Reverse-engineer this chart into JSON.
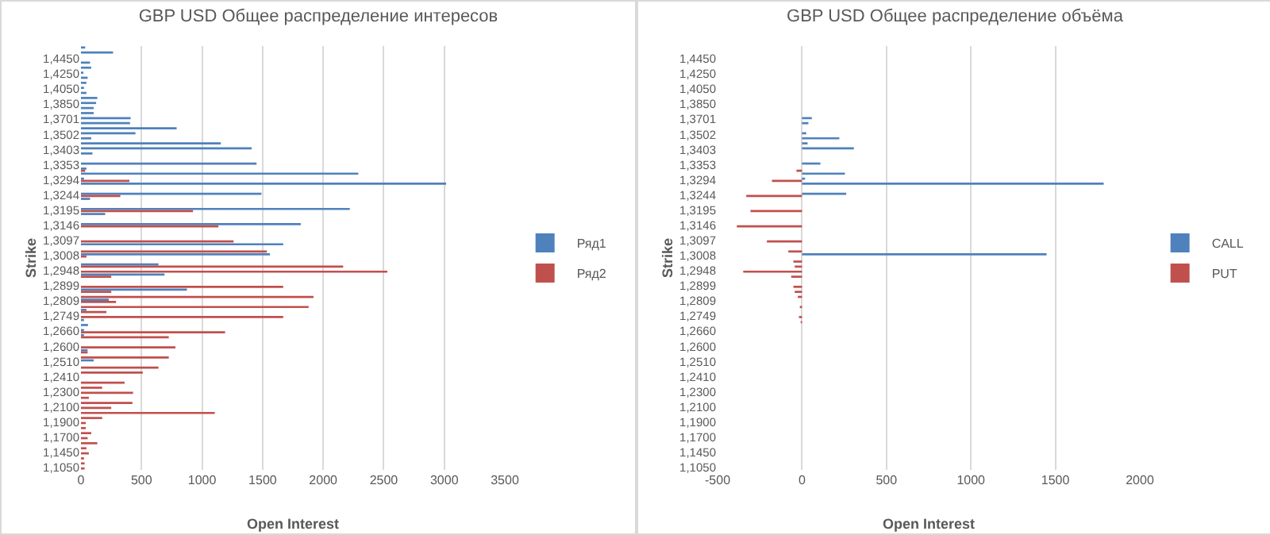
{
  "chart_data": [
    {
      "type": "bar",
      "orientation": "horizontal",
      "title": "GBP USD Общее распределение интересов",
      "xlabel": "Open Interest",
      "ylabel": "Strike",
      "categories": [
        null,
        null,
        "1,4450",
        null,
        null,
        "1,4250",
        null,
        null,
        "1,4050",
        null,
        null,
        "1,3850",
        null,
        null,
        "1,3701",
        null,
        null,
        "1,3502",
        null,
        null,
        "1,3403",
        null,
        null,
        "1,3353",
        null,
        null,
        "1,3294",
        null,
        null,
        "1,3244",
        null,
        null,
        "1,3195",
        null,
        null,
        "1,3146",
        null,
        null,
        "1,3097",
        null,
        null,
        "1,3008",
        null,
        null,
        "1,2948",
        null,
        null,
        "1,2899",
        null,
        null,
        "1,2809",
        null,
        null,
        "1,2749",
        null,
        null,
        "1,2660",
        null,
        null,
        "1,2600",
        null,
        null,
        "1,2510",
        null,
        null,
        "1,2410",
        null,
        null,
        "1,2300",
        null,
        null,
        "1,2100",
        null,
        null,
        "1,1900",
        null,
        null,
        "1,1700",
        null,
        null,
        "1,1450",
        null,
        null,
        "1,1050"
      ],
      "series": [
        {
          "name": "Ряд1",
          "color": "#4f81bd",
          "values": [
            35,
            265,
            null,
            75,
            85,
            20,
            55,
            45,
            25,
            45,
            135,
            125,
            105,
            105,
            410,
            405,
            790,
            450,
            85,
            1155,
            1410,
            95,
            null,
            1450,
            45,
            2290,
            25,
            3015,
            null,
            1490,
            75,
            null,
            2220,
            200,
            null,
            1815,
            null,
            null,
            null,
            1670,
            null,
            1560,
            null,
            640,
            null,
            690,
            null,
            null,
            875,
            null,
            230,
            null,
            45,
            null,
            25,
            58,
            25,
            25,
            null,
            null,
            55,
            null,
            105,
            null,
            null,
            null,
            null,
            null,
            null,
            null,
            null,
            null,
            null,
            null,
            null,
            null,
            null,
            null,
            null,
            null,
            null,
            null,
            null,
            null
          ]
        },
        {
          "name": "Ряд2",
          "color": "#c0504d",
          "values": [
            null,
            null,
            null,
            null,
            null,
            null,
            null,
            null,
            null,
            null,
            null,
            null,
            null,
            null,
            null,
            null,
            null,
            null,
            null,
            null,
            null,
            null,
            null,
            null,
            35,
            null,
            400,
            null,
            null,
            325,
            null,
            null,
            925,
            null,
            null,
            1135,
            null,
            null,
            1260,
            null,
            1535,
            45,
            null,
            2165,
            2530,
            250,
            null,
            1670,
            250,
            1920,
            290,
            1880,
            210,
            1670,
            null,
            null,
            1190,
            725,
            null,
            780,
            55,
            725,
            null,
            640,
            510,
            null,
            360,
            175,
            430,
            65,
            425,
            250,
            1105,
            175,
            40,
            40,
            85,
            55,
            135,
            45,
            65,
            25,
            30,
            30
          ]
        }
      ],
      "xlim": [
        0,
        3500
      ],
      "xticks": [
        0,
        500,
        1000,
        1500,
        2000,
        2500,
        3000,
        3500
      ],
      "grid": "x",
      "legend": "right"
    },
    {
      "type": "bar",
      "orientation": "horizontal",
      "title": "GBP USD Общее распределение объёма",
      "xlabel": "Open Interest",
      "ylabel": "Strike",
      "categories": [
        null,
        null,
        "1,4450",
        null,
        null,
        "1,4250",
        null,
        null,
        "1,4050",
        null,
        null,
        "1,3850",
        null,
        null,
        "1,3701",
        null,
        null,
        "1,3502",
        null,
        null,
        "1,3403",
        null,
        null,
        "1,3353",
        null,
        null,
        "1,3294",
        null,
        null,
        "1,3244",
        null,
        null,
        "1,3195",
        null,
        null,
        "1,3146",
        null,
        null,
        "1,3097",
        null,
        null,
        "1,3008",
        null,
        null,
        "1,2948",
        null,
        null,
        "1,2899",
        null,
        null,
        "1,2809",
        null,
        null,
        "1,2749",
        null,
        null,
        "1,2660",
        null,
        null,
        "1,2600",
        null,
        null,
        "1,2510",
        null,
        null,
        "1,2410",
        null,
        null,
        "1,2300",
        null,
        null,
        "1,2100",
        null,
        null,
        "1,1900",
        null,
        null,
        "1,1700",
        null,
        null,
        "1,1450",
        null,
        null,
        "1,1050"
      ],
      "series": [
        {
          "name": "CALL",
          "color": "#4f81bd",
          "values": [
            null,
            null,
            null,
            null,
            null,
            null,
            null,
            null,
            null,
            null,
            null,
            null,
            null,
            null,
            58,
            38,
            null,
            25,
            221,
            33,
            307,
            null,
            null,
            109,
            null,
            254,
            18,
            1786,
            null,
            262,
            null,
            null,
            null,
            null,
            null,
            null,
            null,
            null,
            null,
            null,
            null,
            1448,
            null,
            null,
            null,
            null,
            null,
            null,
            null,
            null,
            null,
            null,
            null,
            null,
            null,
            null,
            null,
            null,
            null,
            null,
            null,
            null,
            null,
            null,
            null,
            null,
            null,
            null,
            null,
            null,
            null,
            null,
            null,
            null,
            null,
            null,
            null,
            null,
            null,
            null,
            null,
            null,
            null,
            null
          ]
        },
        {
          "name": "PUT",
          "color": "#c0504d",
          "values": [
            null,
            null,
            null,
            null,
            null,
            null,
            null,
            null,
            null,
            null,
            null,
            null,
            null,
            null,
            null,
            null,
            null,
            null,
            null,
            null,
            null,
            null,
            null,
            null,
            -33,
            null,
            -178,
            null,
            null,
            -330,
            null,
            null,
            -305,
            null,
            null,
            -386,
            null,
            null,
            -208,
            null,
            -81,
            null,
            -51,
            -43,
            -348,
            -64,
            null,
            -51,
            -43,
            -25,
            null,
            -13,
            null,
            -18,
            -8,
            null,
            null,
            null,
            null,
            null,
            null,
            null,
            null,
            null,
            null,
            null,
            null,
            null,
            null,
            null,
            null,
            null,
            null,
            null,
            null,
            null,
            null,
            null,
            null,
            null,
            null,
            null,
            null,
            null
          ]
        }
      ],
      "xlim": [
        -500,
        2000
      ],
      "xticks": [
        -500,
        0,
        500,
        1000,
        1500,
        2000
      ],
      "grid": "x",
      "legend": "right"
    }
  ]
}
